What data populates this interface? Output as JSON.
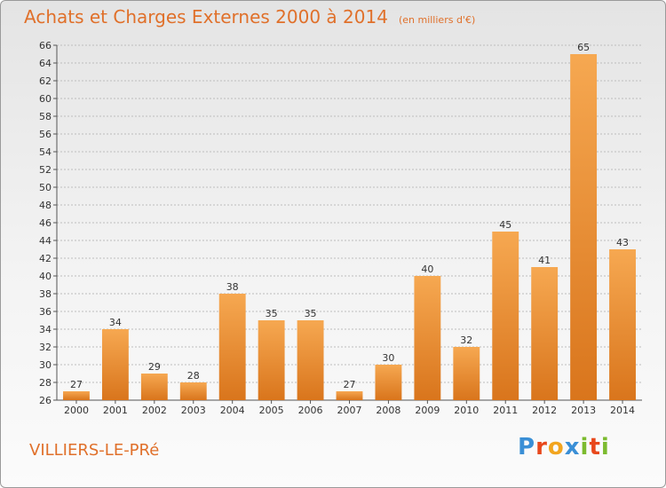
{
  "header": {
    "title": "Achats et Charges Externes 2000 à 2014",
    "subtitle": "(en milliers d'€)"
  },
  "footer": {
    "commune": "VILLIERS-LE-PRé",
    "logo": "Proxiti"
  },
  "colors": {
    "title": "#e0702a",
    "bar_light": "#f6a851",
    "bar_dark": "#d9751c",
    "grid": "#bdbdbd"
  },
  "chart_data": {
    "type": "bar",
    "title": "Achats et Charges Externes 2000 à 2014",
    "unit": "(en milliers d'€)",
    "categories": [
      "2000",
      "2001",
      "2002",
      "2003",
      "2004",
      "2005",
      "2006",
      "2007",
      "2008",
      "2009",
      "2010",
      "2011",
      "2012",
      "2013",
      "2014"
    ],
    "values": [
      27,
      34,
      29,
      28,
      38,
      35,
      35,
      27,
      30,
      40,
      32,
      45,
      41,
      65,
      43
    ],
    "ylim": [
      26,
      66
    ],
    "yticks": [
      26,
      28,
      30,
      32,
      34,
      36,
      38,
      40,
      42,
      44,
      46,
      48,
      50,
      52,
      54,
      56,
      58,
      60,
      62,
      64,
      66
    ],
    "grid": true,
    "data_labels": true
  }
}
